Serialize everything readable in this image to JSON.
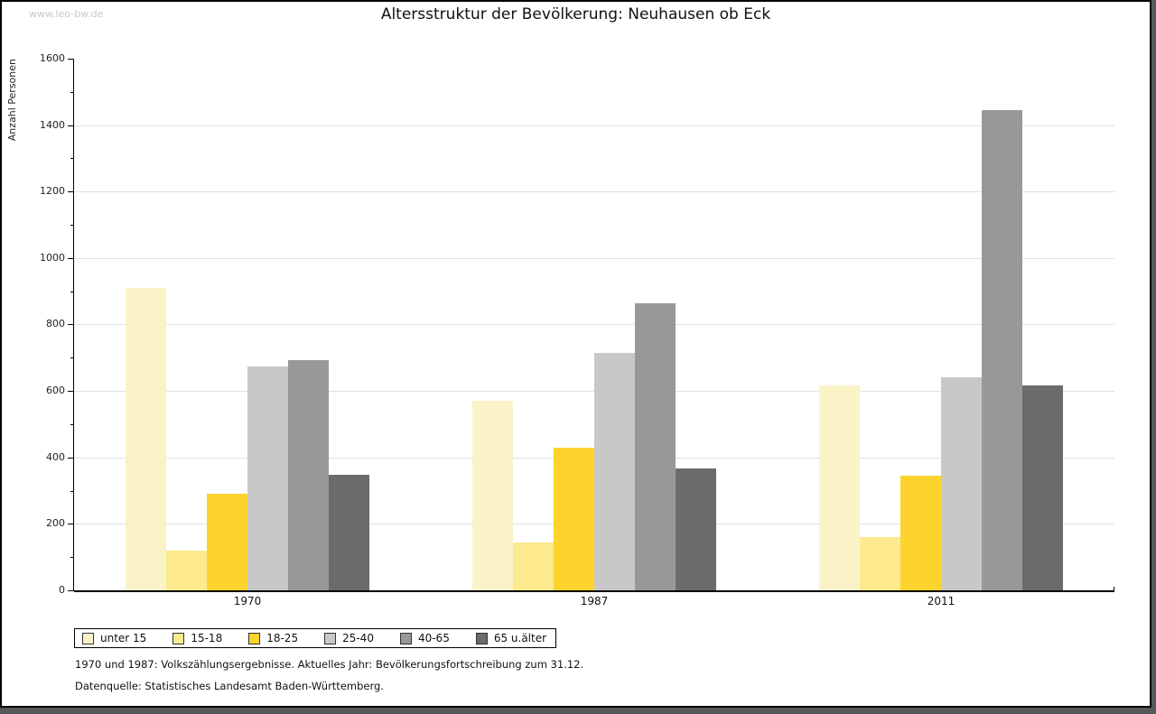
{
  "watermark": "www.leo-bw.de",
  "chart_data": {
    "type": "bar",
    "title": "Altersstruktur der Bevölkerung: Neuhausen ob Eck",
    "ylabel": "Anzahl Personen",
    "xlabel": "",
    "categories": [
      "1970",
      "1987",
      "2011"
    ],
    "series": [
      {
        "name": "unter 15",
        "color": "#faf3c8",
        "values": [
          910,
          570,
          617
        ]
      },
      {
        "name": "15-18",
        "color": "#fde98e",
        "values": [
          120,
          145,
          160
        ]
      },
      {
        "name": "18-25",
        "color": "#fdd32e",
        "values": [
          290,
          430,
          346
        ]
      },
      {
        "name": "25-40",
        "color": "#c8c8c8",
        "values": [
          675,
          714,
          640
        ]
      },
      {
        "name": "40-65",
        "color": "#989898",
        "values": [
          694,
          865,
          1445
        ]
      },
      {
        "name": "65 u.älter",
        "color": "#6b6b6b",
        "values": [
          348,
          368,
          617
        ]
      }
    ],
    "ylim": [
      0,
      1600
    ],
    "ytick_step": 200,
    "yminor_step": 100,
    "grid": true,
    "gridline_color": "#e1e1e1",
    "legend_position": "bottom-left"
  },
  "footnotes": {
    "line1": "1970 und 1987: Volkszählungsergebnisse. Aktuelles Jahr: Bevölkerungsfortschreibung zum 31.12.",
    "line2": "Datenquelle: Statistisches Landesamt Baden-Württemberg."
  }
}
